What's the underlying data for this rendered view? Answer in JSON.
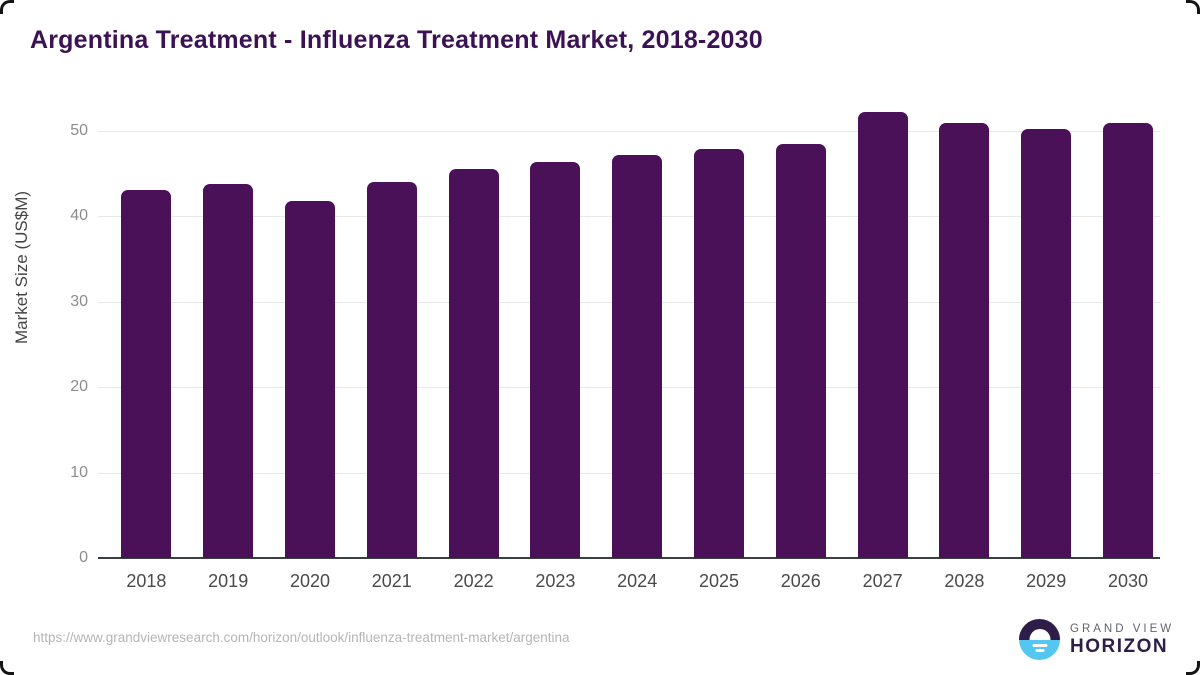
{
  "page": {
    "title": "Argentina Treatment - Influenza Treatment Market, 2018-2030",
    "source_url": "https://www.grandviewresearch.com/horizon/outlook/influenza-treatment-market/argentina"
  },
  "branding": {
    "name_top": "GRAND VIEW",
    "name_bottom": "HORIZON",
    "icon": "sunrise-horizon-icon",
    "icon_dark_color": "#2e1c49",
    "icon_blue_color": "#55c6f0"
  },
  "chart_data": {
    "type": "bar",
    "title": "Argentina Treatment - Influenza Treatment Market, 2018-2030",
    "categories": [
      "2018",
      "2019",
      "2020",
      "2021",
      "2022",
      "2023",
      "2024",
      "2025",
      "2026",
      "2027",
      "2028",
      "2029",
      "2030"
    ],
    "values": [
      43.0,
      43.7,
      41.8,
      44.0,
      45.5,
      46.3,
      47.1,
      47.8,
      48.4,
      52.2,
      50.9,
      50.2,
      50.9
    ],
    "xlabel": "",
    "ylabel": "Market Size (US$M)",
    "ylim": [
      0,
      54
    ],
    "yticks": [
      0,
      10,
      20,
      30,
      40,
      50
    ],
    "grid": "horizontal",
    "legend": "none",
    "bar_color": "#4a1058",
    "gridline_color": "#e8e8e8",
    "axis_color": "#3a3f44"
  }
}
